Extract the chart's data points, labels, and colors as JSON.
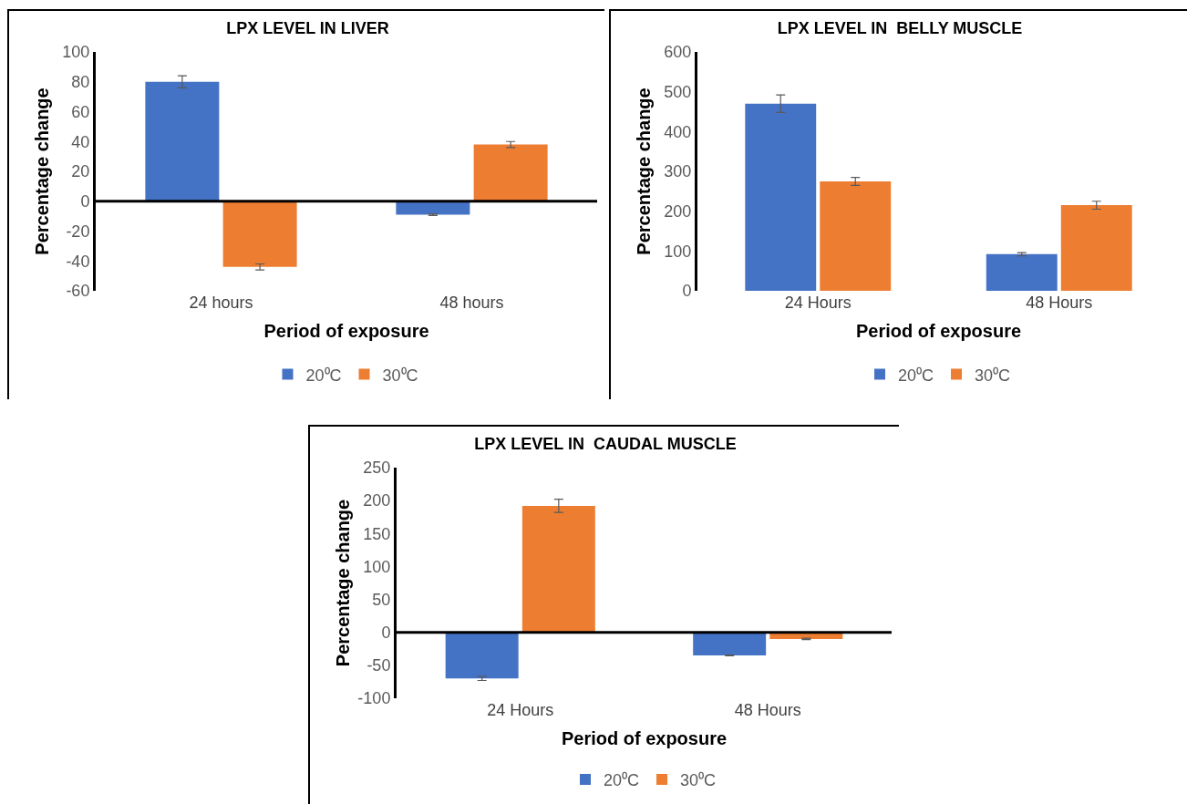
{
  "chart_data": [
    {
      "type": "bar",
      "title": "LPX LEVEL IN LIVER",
      "xlabel": "Period of exposure",
      "ylabel": "Percentage change",
      "categories": [
        "24 hours",
        "48 hours"
      ],
      "series": [
        {
          "name": "20⁰C",
          "color": "#4472c4",
          "values": [
            80,
            -9
          ],
          "errors": [
            4,
            0.5
          ]
        },
        {
          "name": "30⁰C",
          "color": "#ed7d31",
          "values": [
            -44,
            38
          ],
          "errors": [
            2,
            2
          ]
        }
      ],
      "ylim": [
        -60,
        100
      ],
      "yticks": [
        -60,
        -40,
        -20,
        0,
        20,
        40,
        60,
        80,
        100
      ],
      "grid": false,
      "legend": "bottom",
      "ref_lines": [
        {
          "axis": "y",
          "value": 0,
          "color": "#000000"
        }
      ]
    },
    {
      "type": "bar",
      "title": "LPX LEVEL IN  BELLY MUSCLE",
      "xlabel": "Period of exposure",
      "ylabel": "Percentage change",
      "categories": [
        "24 Hours",
        "48 Hours"
      ],
      "series": [
        {
          "name": "20⁰C",
          "color": "#4472c4",
          "values": [
            470,
            92
          ],
          "errors": [
            22,
            4
          ]
        },
        {
          "name": "30⁰C",
          "color": "#ed7d31",
          "values": [
            275,
            215
          ],
          "errors": [
            10,
            10
          ]
        }
      ],
      "ylim": [
        0,
        600
      ],
      "yticks": [
        0,
        100,
        200,
        300,
        400,
        500,
        600
      ],
      "grid": false,
      "legend": "bottom"
    },
    {
      "type": "bar",
      "title": "LPX LEVEL IN  CAUDAL MUSCLE",
      "xlabel": "Period of exposure",
      "ylabel": "Percentage change",
      "categories": [
        "24 Hours",
        "48 Hours"
      ],
      "series": [
        {
          "name": "20⁰C",
          "color": "#4472c4",
          "values": [
            -70,
            -35
          ],
          "errors": [
            3,
            0.5
          ]
        },
        {
          "name": "30⁰C",
          "color": "#ed7d31",
          "values": [
            192,
            -10
          ],
          "errors": [
            10,
            1
          ]
        }
      ],
      "ylim": [
        -100,
        250
      ],
      "yticks": [
        -100,
        -50,
        0,
        50,
        100,
        150,
        200,
        250
      ],
      "grid": false,
      "legend": "bottom",
      "ref_lines": [
        {
          "axis": "y",
          "value": 0,
          "color": "#000000"
        }
      ]
    }
  ]
}
